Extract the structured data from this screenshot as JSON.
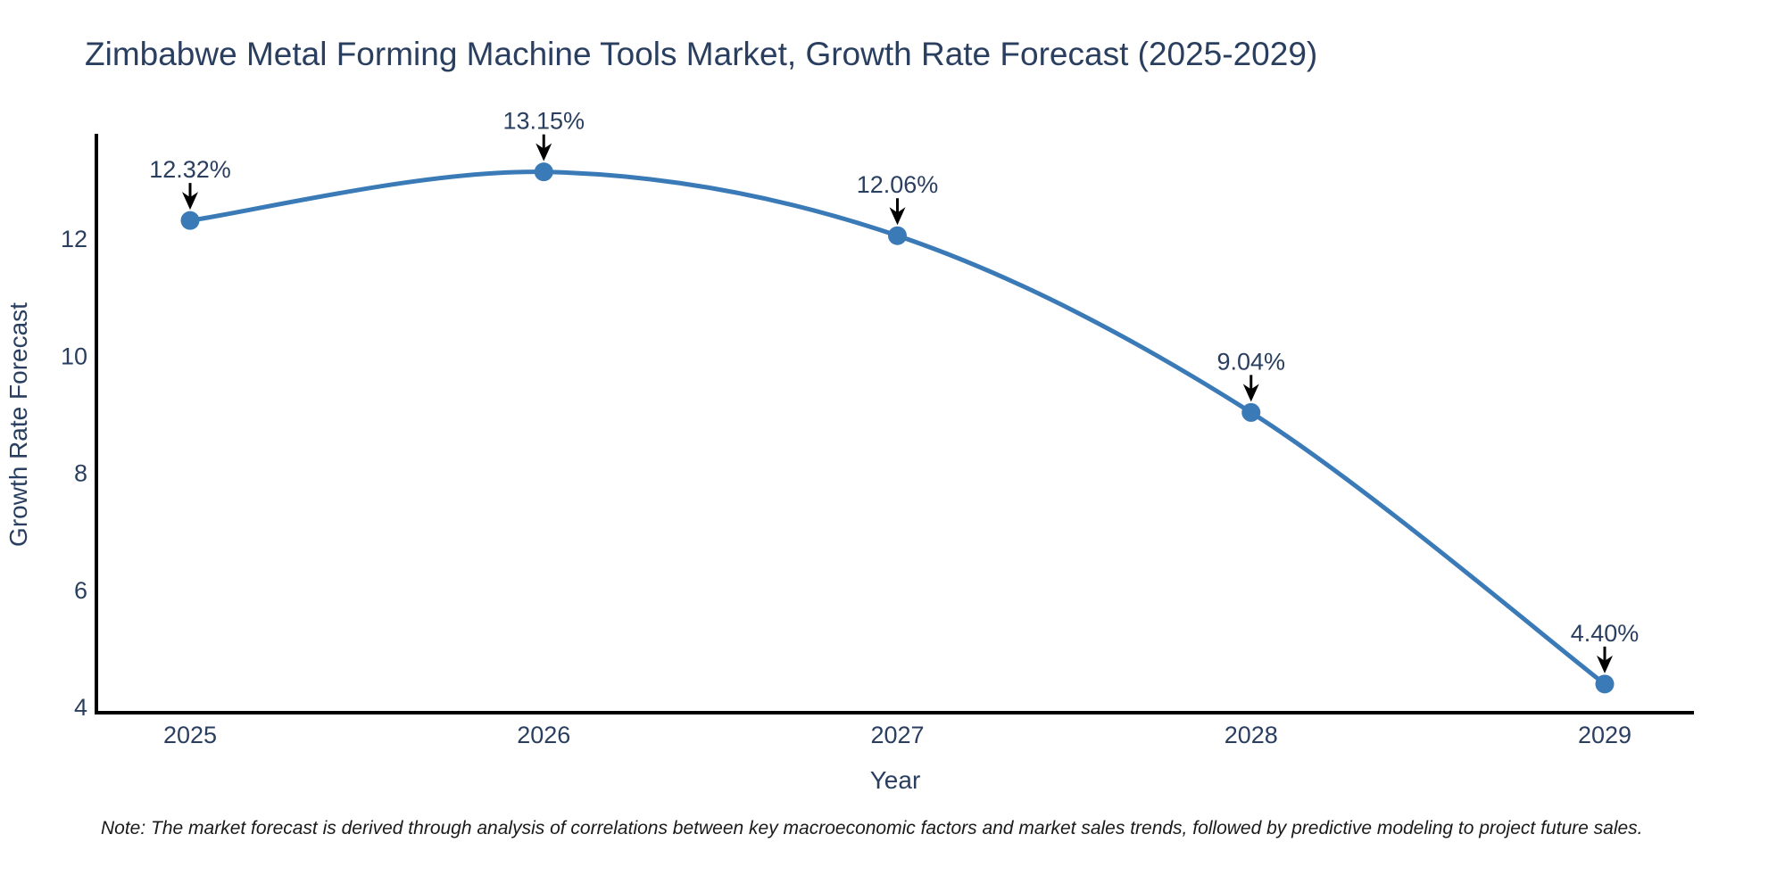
{
  "page": {
    "background": "#ffffff"
  },
  "chart_data": {
    "type": "line",
    "title": "Zimbabwe Metal Forming Machine Tools Market, Growth Rate Forecast (2025-2029)",
    "xlabel": "Year",
    "ylabel": "Growth Rate Forecast",
    "categories": [
      "2025",
      "2026",
      "2027",
      "2028",
      "2029"
    ],
    "series": [
      {
        "name": "Growth Rate Forecast",
        "values": [
          12.32,
          13.15,
          12.06,
          9.04,
          4.4
        ]
      }
    ],
    "point_labels": [
      "12.32%",
      "13.15%",
      "12.06%",
      "9.04%",
      "4.40%"
    ],
    "yticks": [
      4,
      6,
      8,
      10,
      12
    ],
    "ylim": [
      3.91,
      13.77
    ],
    "grid": false,
    "legend_position": "none",
    "line_shape": "spline",
    "colors": {
      "line": "#3a7ab7",
      "marker": "#3a7ab7",
      "annotation_text": "#2a3f5f",
      "annotation_arrow": "#000000",
      "axis_line": "#000000",
      "tick_text": "#2a3f5f",
      "axis_title_text": "#2a3f5f",
      "title_text": "#2a3f5f"
    }
  },
  "note": {
    "text": "Note: The market forecast is derived through analysis of correlations between key macroeconomic factors and market sales trends, followed by predictive modeling to project future sales."
  }
}
